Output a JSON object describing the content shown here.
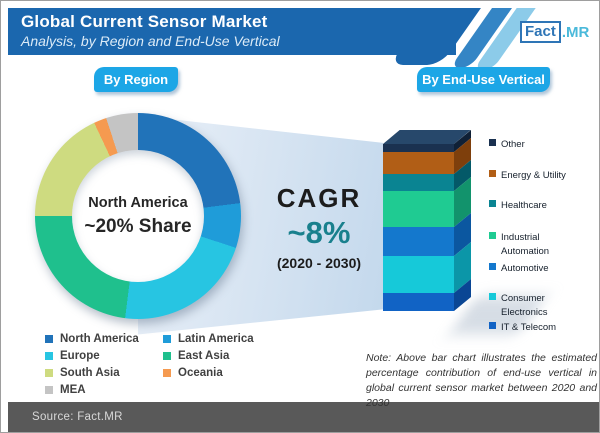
{
  "header": {
    "title": "Global Current Sensor Market",
    "subtitle": "Analysis, by Region and End-Use Vertical",
    "logo_fact": "Fact",
    "logo_mr": ".MR"
  },
  "buttons": {
    "by_region": "By Region",
    "by_end_use": "By End-Use Vertical"
  },
  "cagr": {
    "label": "CAGR",
    "value": "~8%",
    "period": "(2020 - 2030)"
  },
  "note": "Note: Above bar chart illustrates the estimated percentage contribution of end-use vertical in global current sensor market between 2020 and 2030",
  "footer": {
    "source": "Source: Fact.MR"
  },
  "colors": {
    "header_band": "#1b67ae",
    "badge": "#1ca6e6",
    "cagr_value": "#19808d",
    "footer_bar": "#595959"
  },
  "chart_data": [
    {
      "type": "pie",
      "subtype": "donut",
      "title": "By Region",
      "unit": "% share of global current sensor market",
      "center_label": [
        "North America",
        "~20% Share"
      ],
      "segments": [
        {
          "label": "North America",
          "value": 23,
          "color": "#2173b9"
        },
        {
          "label": "Latin America",
          "value": 7,
          "color": "#1f9cd9"
        },
        {
          "label": "Europe",
          "value": 22,
          "color": "#27c5e2"
        },
        {
          "label": "East Asia",
          "value": 23,
          "color": "#1fc08d"
        },
        {
          "label": "South Asia",
          "value": 18,
          "color": "#cedb80"
        },
        {
          "label": "Oceania",
          "value": 2,
          "color": "#f59a50"
        },
        {
          "label": "MEA",
          "value": 5,
          "color": "#c4c4c4"
        }
      ]
    },
    {
      "type": "bar",
      "subtype": "stacked-single-3d",
      "title": "By End-Use Vertical",
      "unit": "estimated % contribution, 2020-2030",
      "segments_top_to_bottom": true,
      "segments": [
        {
          "label": "Other",
          "value": 5,
          "color": "#1a3150",
          "side_color": "#0f2036",
          "top_color": "#27486b"
        },
        {
          "label": "Energy & Utility",
          "value": 13,
          "color": "#b15e16",
          "side_color": "#7e3f0c"
        },
        {
          "label": "Healthcare",
          "value": 10,
          "color": "#0a8492",
          "side_color": "#045968"
        },
        {
          "label": "Industrial Automation",
          "value": 22,
          "color": "#1fcb92",
          "side_color": "#12936c"
        },
        {
          "label": "Automotive",
          "value": 17,
          "color": "#1478cd",
          "side_color": "#0b57a0"
        },
        {
          "label": "Consumer Electronics",
          "value": 22,
          "color": "#16c9d9",
          "side_color": "#0b96a8"
        },
        {
          "label": "IT & Telecom",
          "value": 11,
          "color": "#1163c5",
          "side_color": "#0a4694"
        }
      ]
    }
  ]
}
